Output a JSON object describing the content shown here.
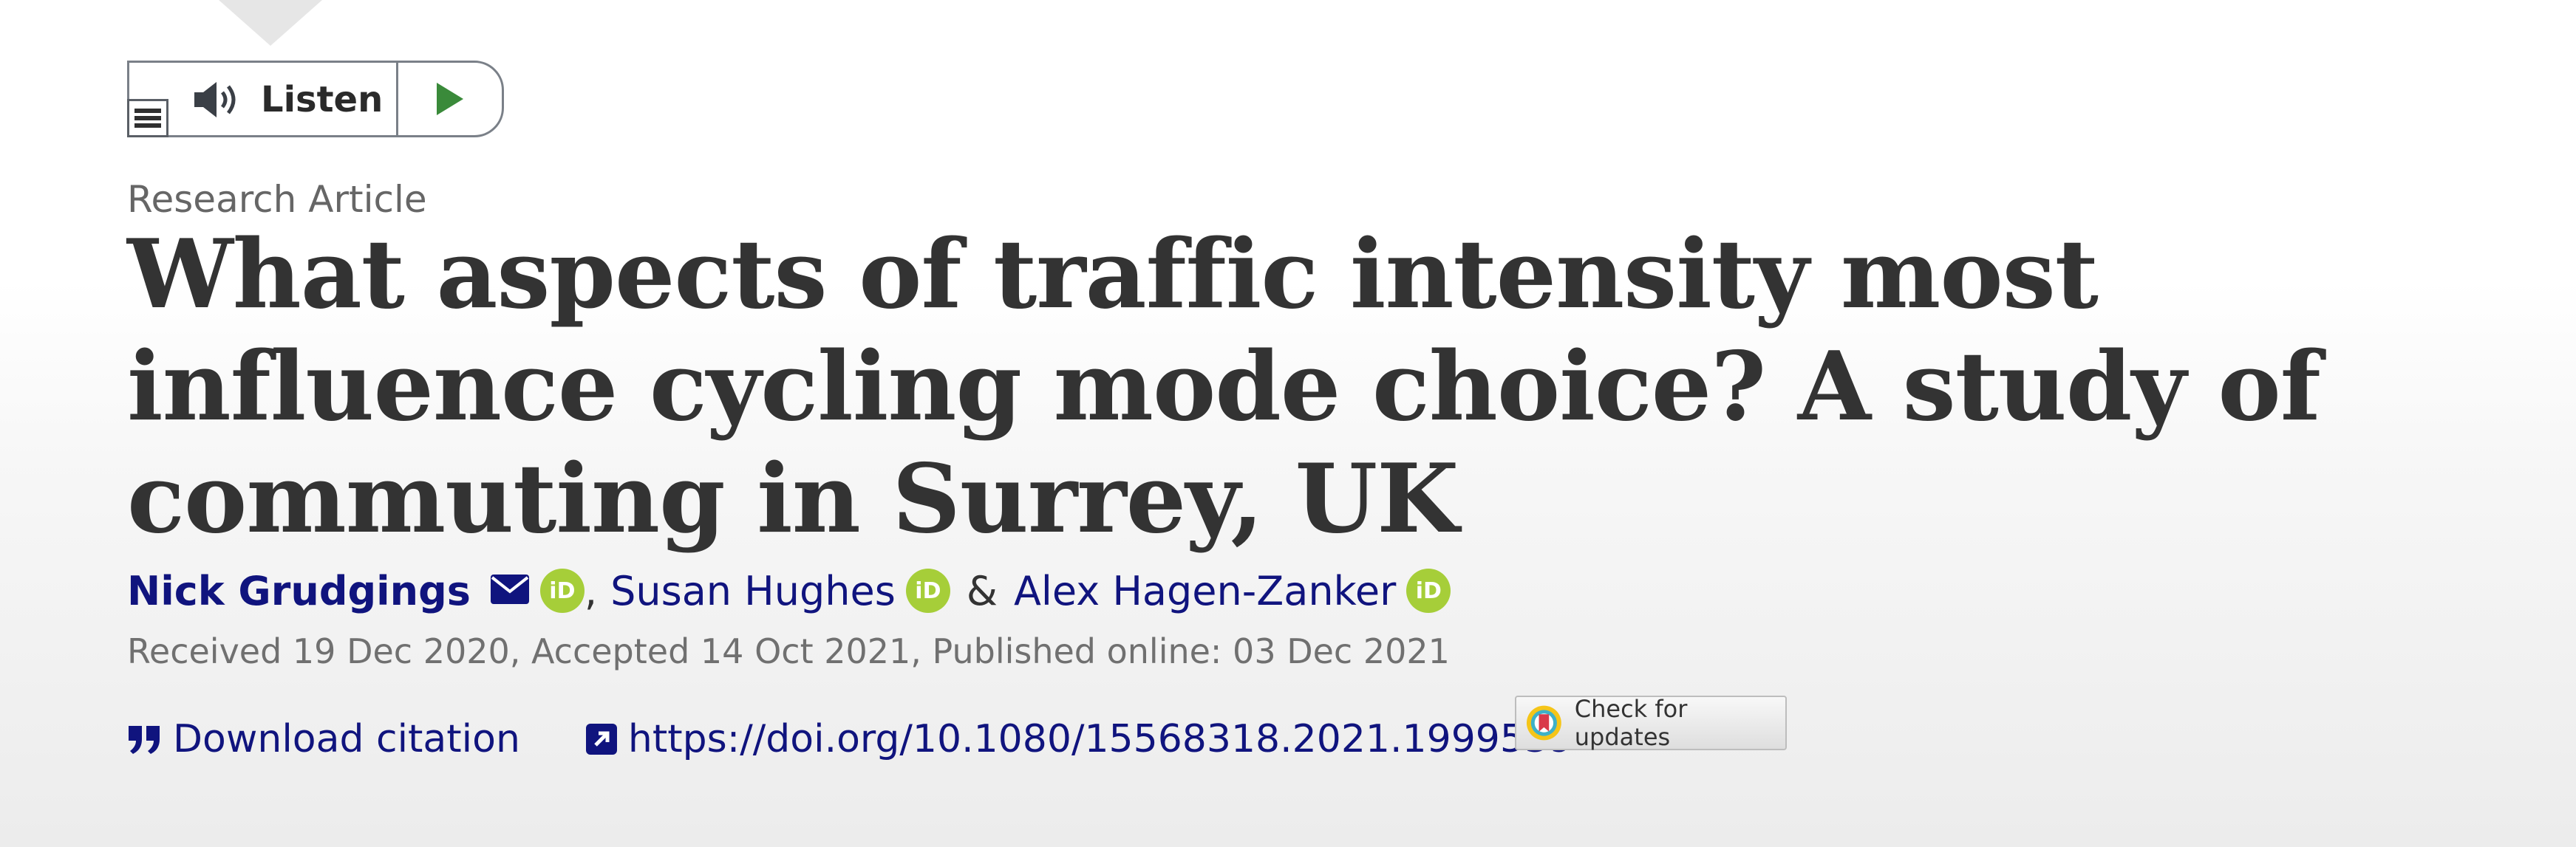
{
  "listen_widget": {
    "label": "Listen",
    "menu_icon": "menu-icon",
    "speaker_icon": "speaker-icon",
    "play_icon": "play-icon"
  },
  "article": {
    "type": "Research Article",
    "title": "What aspects of traffic intensity most influence cycling mode choice? A study of commuting in Surrey, UK"
  },
  "authors": [
    {
      "name": "Nick Grudgings",
      "email_icon": "envelope-icon",
      "orcid": "iD"
    },
    {
      "name": "Susan Hughes",
      "orcid": "iD"
    },
    {
      "name": "Alex Hagen-Zanker",
      "orcid": "iD"
    }
  ],
  "author_separators": [
    ",",
    "&"
  ],
  "dates": "Received 19 Dec 2020, Accepted 14 Oct 2021, Published online: 03 Dec 2021",
  "actions": {
    "download_citation": "Download citation",
    "doi": "https://doi.org/10.1080/15568318.2021.1999539"
  },
  "check_updates": {
    "label": "Check for updates"
  },
  "colors": {
    "link": "#10147e",
    "orcid": "#a6ce39",
    "play": "#3a8a3a",
    "title": "#333333"
  }
}
